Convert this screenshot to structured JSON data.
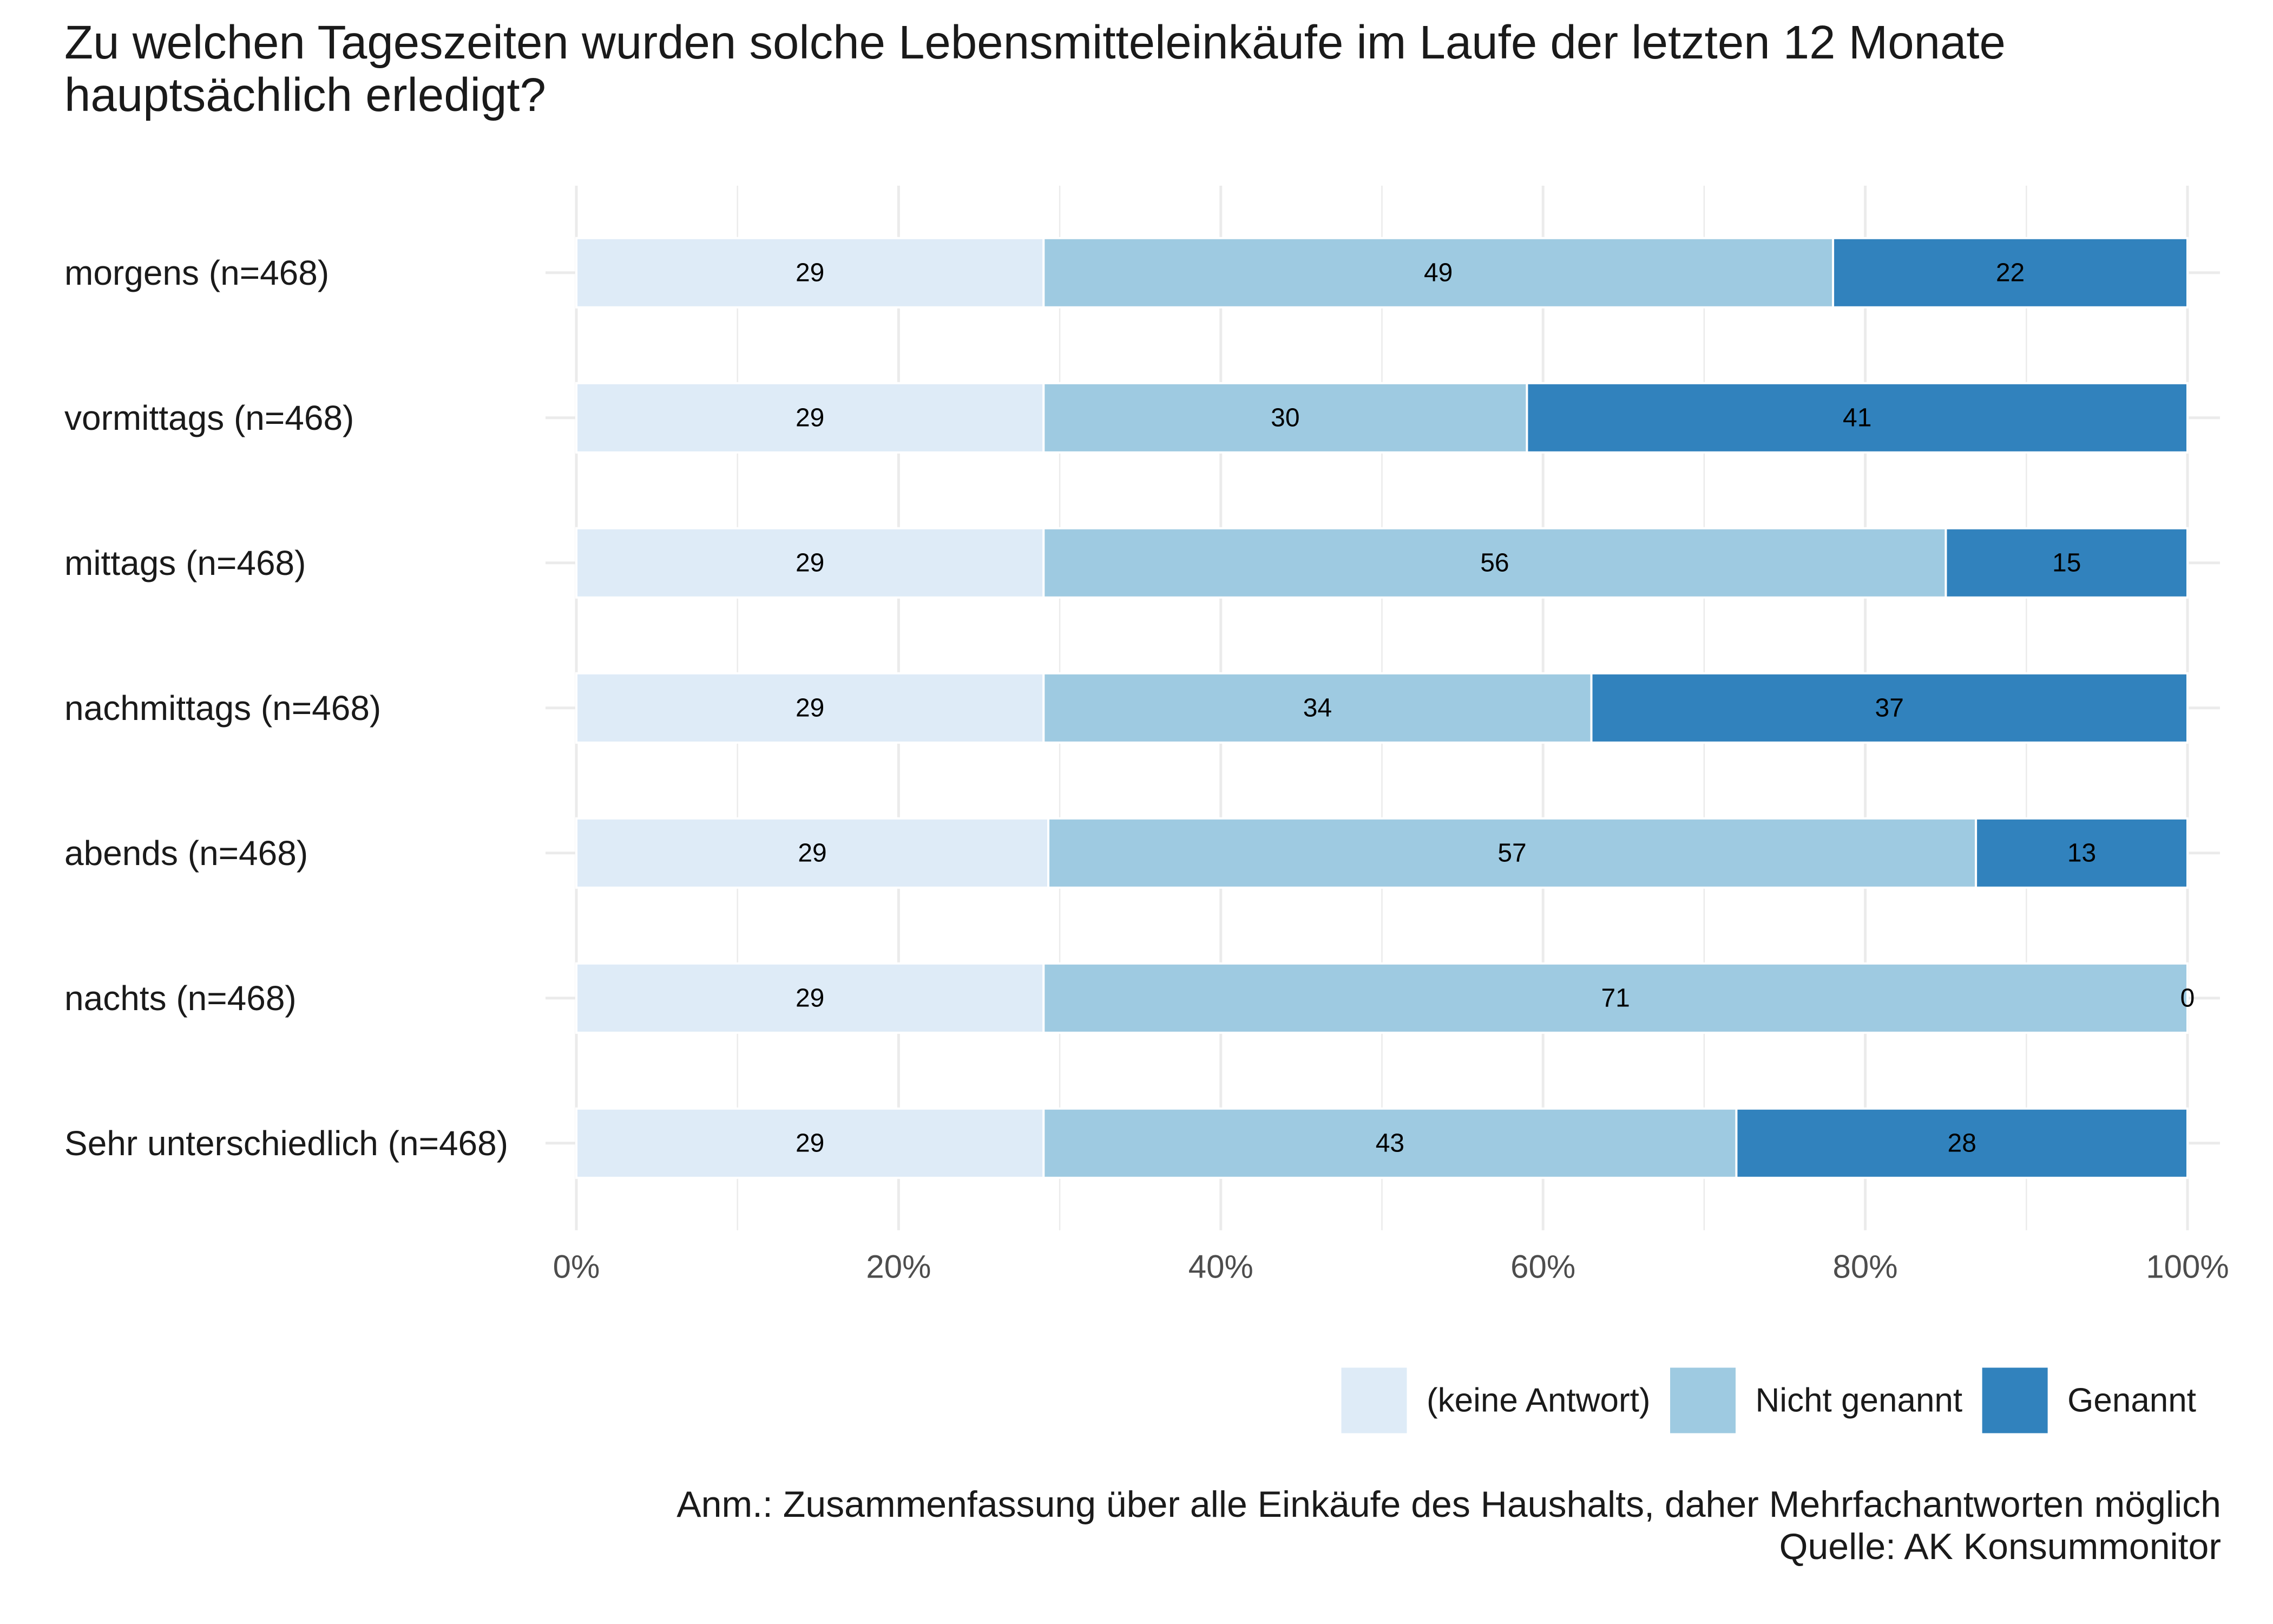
{
  "chart_data": {
    "type": "bar",
    "horizontal": true,
    "stacked": true,
    "title": "Zu welchen Tageszeiten wurden solche Lebensmitteleinkäufe im Laufe der letzten 12 Monate\nhauptsächlich erledigt?",
    "categories": [
      "morgens (n=468)",
      "vormittags (n=468)",
      "mittags (n=468)",
      "nachmittags (n=468)",
      "abends (n=468)",
      "nachts (n=468)",
      "Sehr unterschiedlich (n=468)"
    ],
    "series": [
      {
        "name": "(keine Antwort)",
        "color": "#DEEBF7",
        "values": [
          29,
          29,
          29,
          29,
          29,
          29,
          29
        ]
      },
      {
        "name": "Nicht genannt",
        "color": "#9ECAE1",
        "values": [
          49,
          30,
          56,
          34,
          57,
          71,
          43
        ]
      },
      {
        "name": "Genannt",
        "color": "#3182BD",
        "values": [
          22,
          41,
          15,
          37,
          13,
          0,
          28
        ]
      }
    ],
    "xlim": [
      0,
      100
    ],
    "x_ticks": [
      0,
      20,
      40,
      60,
      80,
      100
    ],
    "x_tick_labels": [
      "0%",
      "20%",
      "40%",
      "60%",
      "80%",
      "100%"
    ],
    "grid": true,
    "legend_position": "bottom-right",
    "caption": [
      "Anm.: Zusammenfassung über alle Einkäufe des Haushalts, daher Mehrfachantworten möglich",
      "Quelle: AK Konsummonitor"
    ]
  }
}
